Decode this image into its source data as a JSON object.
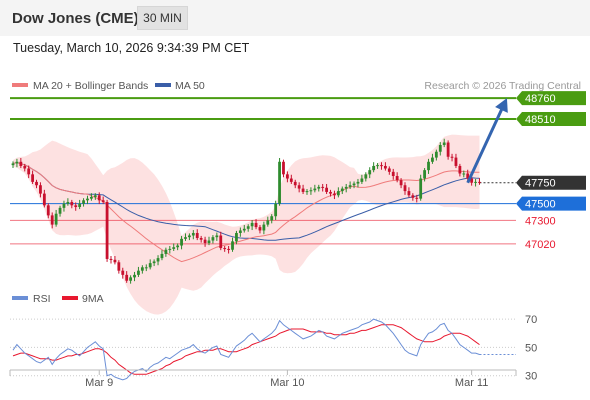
{
  "header": {
    "title": "Dow Jones (CME)",
    "timeframe": "30 MIN",
    "datetime": "Tuesday, March 10, 2026 9:34:39 PM CET"
  },
  "copyright": "Research © 2026 Trading Central",
  "colors": {
    "resistance": "#4a9c11",
    "support": "#e8182f",
    "current": "#333333",
    "pivot": "#1e6fd9",
    "ma20": "#ef7b7b",
    "ma50": "#3a5ea8",
    "bollinger": "#fde1e1",
    "candle_up": "#2e8b2e",
    "candle_down": "#c8102e",
    "rsi": "#6b8fd6",
    "rsi_ma": "#e8182f",
    "arrow": "#3465b0"
  },
  "chart_data": [
    {
      "type": "candlestick",
      "legend": [
        {
          "label": "MA 20 + Bollinger Bands",
          "color": "#ef7b7b"
        },
        {
          "label": "MA 50",
          "color": "#3a5ea8"
        }
      ],
      "price_levels": [
        {
          "value": 48760,
          "label": "48760",
          "kind": "resistance"
        },
        {
          "value": 48510,
          "label": "48510",
          "kind": "resistance"
        },
        {
          "value": 47750,
          "label": "47750",
          "kind": "current"
        },
        {
          "value": 47500,
          "label": "47500",
          "kind": "pivot"
        },
        {
          "value": 47300,
          "label": "47300",
          "kind": "support"
        },
        {
          "value": 47020,
          "label": "47020",
          "kind": "support"
        }
      ],
      "x_labels": [
        "Mar 9",
        "Mar 10",
        "Mar 11"
      ],
      "x_label_index": [
        22,
        70,
        117
      ],
      "n": 120,
      "ylim": [
        46350,
        49000
      ],
      "forecast": {
        "from_index": 116,
        "from_price": 47750,
        "to_index": 126,
        "to_price": 48760
      },
      "closes": [
        47980,
        48000,
        47950,
        47920,
        47850,
        47760,
        47720,
        47620,
        47480,
        47360,
        47250,
        47380,
        47450,
        47500,
        47520,
        47480,
        47460,
        47500,
        47540,
        47560,
        47580,
        47600,
        47540,
        47520,
        46840,
        46830,
        46800,
        46700,
        46650,
        46580,
        46620,
        46650,
        46700,
        46740,
        46740,
        46790,
        46810,
        46850,
        46900,
        46950,
        46960,
        46980,
        47000,
        47080,
        47100,
        47120,
        47150,
        47090,
        47070,
        47030,
        47060,
        47100,
        47120,
        46970,
        46960,
        46950,
        47050,
        47150,
        47180,
        47200,
        47230,
        47270,
        47220,
        47180,
        47250,
        47300,
        47350,
        47500,
        48000,
        47850,
        47800,
        47760,
        47720,
        47680,
        47640,
        47650,
        47660,
        47680,
        47700,
        47690,
        47640,
        47620,
        47600,
        47650,
        47680,
        47700,
        47720,
        47740,
        47760,
        47800,
        47850,
        47900,
        47950,
        47960,
        47950,
        47920,
        47880,
        47830,
        47780,
        47720,
        47650,
        47600,
        47570,
        47560,
        47800,
        47900,
        48000,
        48050,
        48120,
        48200,
        48230,
        48060,
        48050,
        47950,
        47860,
        47860,
        47800,
        47750,
        47760,
        47750
      ]
    },
    {
      "type": "line",
      "legend": [
        {
          "label": "RSI",
          "color": "#6b8fd6"
        },
        {
          "label": "9MA",
          "color": "#e8182f"
        }
      ],
      "ylim": [
        22,
        80
      ],
      "ticks": [
        70,
        50,
        30
      ],
      "current": 45,
      "series": [
        {
          "name": "RSI",
          "values": [
            48,
            52,
            49,
            46,
            44,
            42,
            40,
            39,
            41,
            43,
            38,
            42,
            45,
            47,
            49,
            48,
            46,
            44,
            47,
            50,
            52,
            54,
            51,
            49,
            30,
            31,
            29,
            28,
            27,
            28,
            31,
            33,
            34,
            35,
            33,
            36,
            38,
            39,
            41,
            43,
            42,
            44,
            46,
            48,
            49,
            50,
            52,
            49,
            47,
            46,
            48,
            50,
            51,
            45,
            44,
            43,
            47,
            51,
            53,
            55,
            58,
            60,
            57,
            54,
            56,
            58,
            60,
            63,
            69,
            66,
            64,
            62,
            60,
            58,
            56,
            57,
            58,
            60,
            62,
            61,
            58,
            57,
            56,
            58,
            60,
            61,
            62,
            63,
            64,
            66,
            67,
            68,
            70,
            69,
            68,
            66,
            63,
            60,
            56,
            52,
            48,
            46,
            45,
            44,
            52,
            56,
            60,
            61,
            63,
            66,
            67,
            62,
            60,
            56,
            52,
            50,
            48,
            46,
            46,
            45
          ]
        },
        {
          "name": "9MA",
          "values": [
            44,
            45,
            46,
            46,
            45,
            44,
            43,
            42,
            42,
            42,
            41,
            41,
            42,
            43,
            44,
            44,
            45,
            45,
            46,
            47,
            48,
            49,
            49,
            48,
            46,
            43,
            41,
            38,
            36,
            34,
            32,
            31,
            31,
            31,
            31,
            32,
            33,
            34,
            35,
            37,
            38,
            40,
            41,
            42,
            44,
            45,
            46,
            47,
            47,
            48,
            48,
            48,
            49,
            49,
            48,
            47,
            47,
            47,
            48,
            49,
            50,
            52,
            53,
            54,
            55,
            56,
            57,
            58,
            60,
            61,
            62,
            63,
            63,
            63,
            63,
            62,
            61,
            61,
            61,
            61,
            60,
            60,
            59,
            59,
            59,
            59,
            60,
            60,
            61,
            62,
            62,
            63,
            64,
            65,
            66,
            66,
            66,
            66,
            65,
            64,
            62,
            60,
            58,
            56,
            55,
            54,
            54,
            54,
            55,
            56,
            58,
            59,
            60,
            60,
            60,
            59,
            58,
            56,
            54,
            52
          ]
        }
      ]
    }
  ]
}
